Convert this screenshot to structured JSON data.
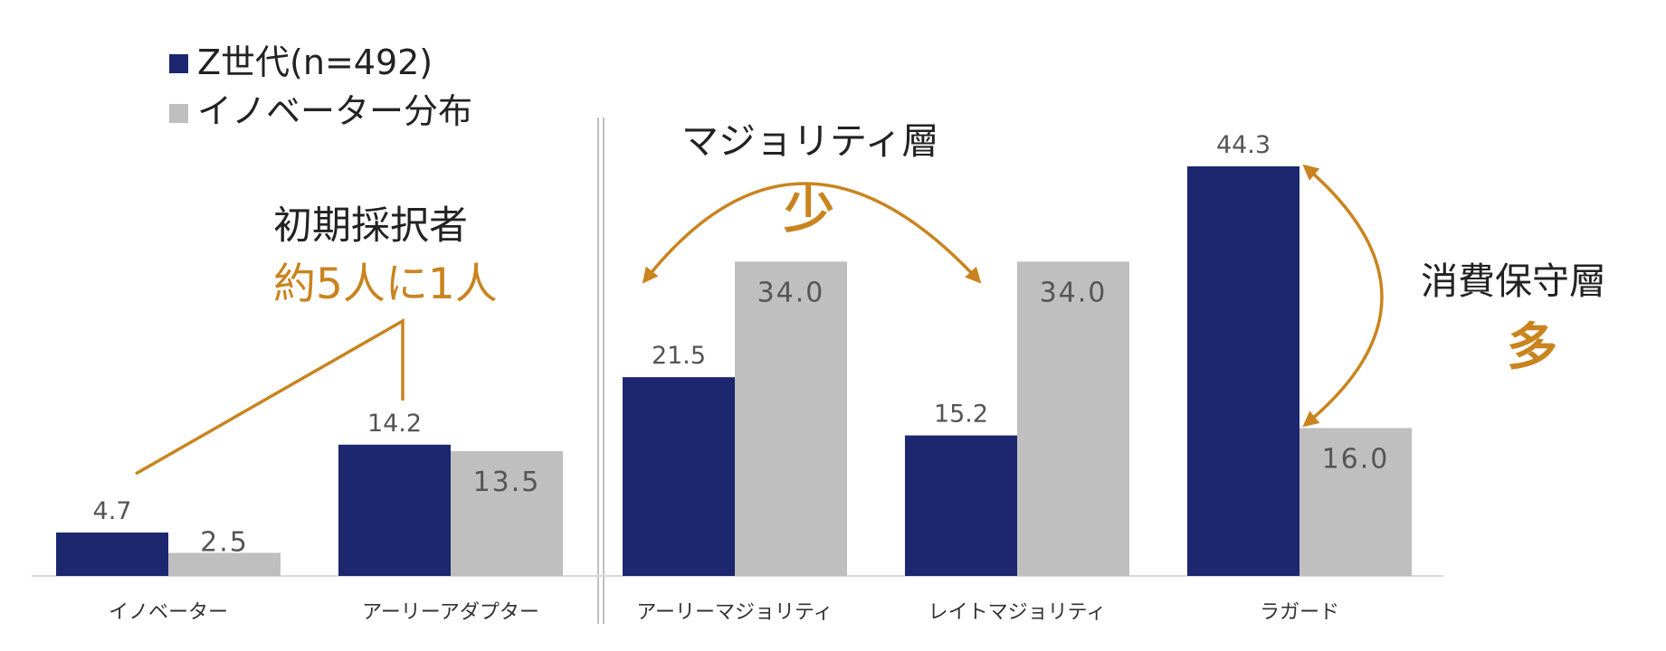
{
  "chart_data": {
    "type": "bar",
    "categories": [
      "イノベーター",
      "アーリーアダプター",
      "アーリーマジョリティ",
      "レイトマジョリティ",
      "ラガード"
    ],
    "series": [
      {
        "name": "Z世代(n=492)",
        "values": [
          4.7,
          14.2,
          21.5,
          15.2,
          44.3
        ],
        "color": "#1C2770"
      },
      {
        "name": "イノベーター分布",
        "values": [
          2.5,
          13.5,
          34.0,
          34.0,
          16.0
        ],
        "color": "#BFBFBF"
      }
    ],
    "value_labels": [
      [
        "4.7",
        "14.2",
        "21.5",
        "15.2",
        "44.3"
      ],
      [
        "2.5",
        "13.5",
        "34.0",
        "34.0",
        "16.0"
      ]
    ],
    "ylim": [
      0,
      46
    ],
    "legend_position": "top-left",
    "grid": false,
    "annotations": {
      "early": {
        "title": "初期採択者",
        "highlight": "約5人に1人"
      },
      "majority": {
        "title": "マジョリティ層",
        "highlight": "少"
      },
      "laggard": {
        "title": "消費保守層",
        "highlight": "多"
      }
    },
    "accent_color": "#C9841F"
  }
}
